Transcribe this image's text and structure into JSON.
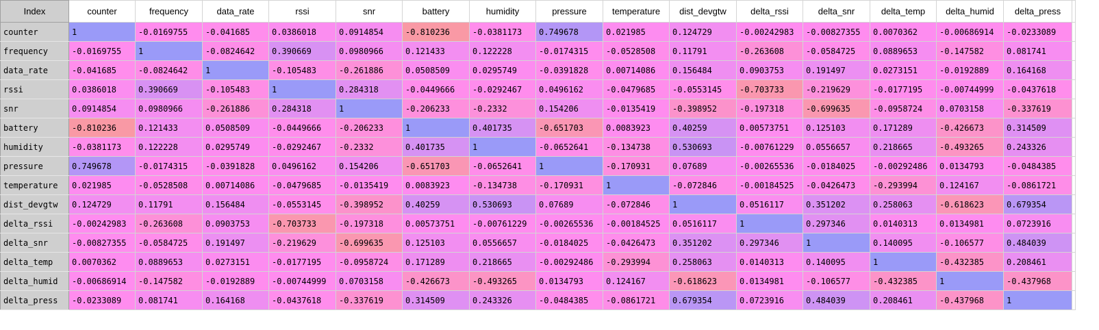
{
  "grid": {
    "index_header": "Index",
    "columns": [
      "counter",
      "frequency",
      "data_rate",
      "rssi",
      "snr",
      "battery",
      "humidity",
      "pressure",
      "temperature",
      "dist_devgtw",
      "delta_rssi",
      "delta_snr",
      "delta_temp",
      "delta_humid",
      "delta_press"
    ],
    "rows": [
      {
        "label": "counter",
        "cells": [
          "1",
          "-0.0169755",
          "-0.041685",
          "0.0386018",
          "0.0914854",
          "-0.810236",
          "-0.0381173",
          "0.749678",
          "0.021985",
          "0.124729",
          "-0.00242983",
          "-0.00827355",
          "0.0070362",
          "-0.00686914",
          "-0.0233089"
        ],
        "values": [
          1,
          -0.0169755,
          -0.041685,
          0.0386018,
          0.0914854,
          -0.810236,
          -0.0381173,
          0.749678,
          0.021985,
          0.124729,
          -0.00242983,
          -0.00827355,
          0.0070362,
          -0.00686914,
          -0.0233089
        ]
      },
      {
        "label": "frequency",
        "cells": [
          "-0.0169755",
          "1",
          "-0.0824642",
          "0.390669",
          "0.0980966",
          "0.121433",
          "0.122228",
          "-0.0174315",
          "-0.0528508",
          "0.11791",
          "-0.263608",
          "-0.0584725",
          "0.0889653",
          "-0.147582",
          "0.081741"
        ],
        "values": [
          -0.0169755,
          1,
          -0.0824642,
          0.390669,
          0.0980966,
          0.121433,
          0.122228,
          -0.0174315,
          -0.0528508,
          0.11791,
          -0.263608,
          -0.0584725,
          0.0889653,
          -0.147582,
          0.081741
        ]
      },
      {
        "label": "data_rate",
        "cells": [
          "-0.041685",
          "-0.0824642",
          "1",
          "-0.105483",
          "-0.261886",
          "0.0508509",
          "0.0295749",
          "-0.0391828",
          "0.00714086",
          "0.156484",
          "0.0903753",
          "0.191497",
          "0.0273151",
          "-0.0192889",
          "0.164168"
        ],
        "values": [
          -0.041685,
          -0.0824642,
          1,
          -0.105483,
          -0.261886,
          0.0508509,
          0.0295749,
          -0.0391828,
          0.00714086,
          0.156484,
          0.0903753,
          0.191497,
          0.0273151,
          -0.0192889,
          0.164168
        ]
      },
      {
        "label": "rssi",
        "cells": [
          "0.0386018",
          "0.390669",
          "-0.105483",
          "1",
          "0.284318",
          "-0.0449666",
          "-0.0292467",
          "0.0496162",
          "-0.0479685",
          "-0.0553145",
          "-0.703733",
          "-0.219629",
          "-0.0177195",
          "-0.00744999",
          "-0.0437618"
        ],
        "values": [
          0.0386018,
          0.390669,
          -0.105483,
          1,
          0.284318,
          -0.0449666,
          -0.0292467,
          0.0496162,
          -0.0479685,
          -0.0553145,
          -0.703733,
          -0.219629,
          -0.0177195,
          -0.00744999,
          -0.0437618
        ]
      },
      {
        "label": "snr",
        "cells": [
          "0.0914854",
          "0.0980966",
          "-0.261886",
          "0.284318",
          "1",
          "-0.206233",
          "-0.2332",
          "0.154206",
          "-0.0135419",
          "-0.398952",
          "-0.197318",
          "-0.699635",
          "-0.0958724",
          "0.0703158",
          "-0.337619"
        ],
        "values": [
          0.0914854,
          0.0980966,
          -0.261886,
          0.284318,
          1,
          -0.206233,
          -0.2332,
          0.154206,
          -0.0135419,
          -0.398952,
          -0.197318,
          -0.699635,
          -0.0958724,
          0.0703158,
          -0.337619
        ]
      },
      {
        "label": "battery",
        "cells": [
          "-0.810236",
          "0.121433",
          "0.0508509",
          "-0.0449666",
          "-0.206233",
          "1",
          "0.401735",
          "-0.651703",
          "0.0083923",
          "0.40259",
          "0.00573751",
          "0.125103",
          "0.171289",
          "-0.426673",
          "0.314509"
        ],
        "values": [
          -0.810236,
          0.121433,
          0.0508509,
          -0.0449666,
          -0.206233,
          1,
          0.401735,
          -0.651703,
          0.0083923,
          0.40259,
          0.00573751,
          0.125103,
          0.171289,
          -0.426673,
          0.314509
        ]
      },
      {
        "label": "humidity",
        "cells": [
          "-0.0381173",
          "0.122228",
          "0.0295749",
          "-0.0292467",
          "-0.2332",
          "0.401735",
          "1",
          "-0.0652641",
          "-0.134738",
          "0.530693",
          "-0.00761229",
          "0.0556657",
          "0.218665",
          "-0.493265",
          "0.243326"
        ],
        "values": [
          -0.0381173,
          0.122228,
          0.0295749,
          -0.0292467,
          -0.2332,
          0.401735,
          1,
          -0.0652641,
          -0.134738,
          0.530693,
          -0.00761229,
          0.0556657,
          0.218665,
          -0.493265,
          0.243326
        ]
      },
      {
        "label": "pressure",
        "cells": [
          "0.749678",
          "-0.0174315",
          "-0.0391828",
          "0.0496162",
          "0.154206",
          "-0.651703",
          "-0.0652641",
          "1",
          "-0.170931",
          "0.07689",
          "-0.00265536",
          "-0.0184025",
          "-0.00292486",
          "0.0134793",
          "-0.0484385"
        ],
        "values": [
          0.749678,
          -0.0174315,
          -0.0391828,
          0.0496162,
          0.154206,
          -0.651703,
          -0.0652641,
          1,
          -0.170931,
          0.07689,
          -0.00265536,
          -0.0184025,
          -0.00292486,
          0.0134793,
          -0.0484385
        ]
      },
      {
        "label": "temperature",
        "cells": [
          "0.021985",
          "-0.0528508",
          "0.00714086",
          "-0.0479685",
          "-0.0135419",
          "0.0083923",
          "-0.134738",
          "-0.170931",
          "1",
          "-0.072846",
          "-0.00184525",
          "-0.0426473",
          "-0.293994",
          "0.124167",
          "-0.0861721"
        ],
        "values": [
          0.021985,
          -0.0528508,
          0.00714086,
          -0.0479685,
          -0.0135419,
          0.0083923,
          -0.134738,
          -0.170931,
          1,
          -0.072846,
          -0.00184525,
          -0.0426473,
          -0.293994,
          0.124167,
          -0.0861721
        ]
      },
      {
        "label": "dist_devgtw",
        "cells": [
          "0.124729",
          "0.11791",
          "0.156484",
          "-0.0553145",
          "-0.398952",
          "0.40259",
          "0.530693",
          "0.07689",
          "-0.072846",
          "1",
          "0.0516117",
          "0.351202",
          "0.258063",
          "-0.618623",
          "0.679354"
        ],
        "values": [
          0.124729,
          0.11791,
          0.156484,
          -0.0553145,
          -0.398952,
          0.40259,
          0.530693,
          0.07689,
          -0.072846,
          1,
          0.0516117,
          0.351202,
          0.258063,
          -0.618623,
          0.679354
        ]
      },
      {
        "label": "delta_rssi",
        "cells": [
          "-0.00242983",
          "-0.263608",
          "0.0903753",
          "-0.703733",
          "-0.197318",
          "0.00573751",
          "-0.00761229",
          "-0.00265536",
          "-0.00184525",
          "0.0516117",
          "1",
          "0.297346",
          "0.0140313",
          "0.0134981",
          "0.0723916"
        ],
        "values": [
          -0.00242983,
          -0.263608,
          0.0903753,
          -0.703733,
          -0.197318,
          0.00573751,
          -0.00761229,
          -0.00265536,
          -0.00184525,
          0.0516117,
          1,
          0.297346,
          0.0140313,
          0.0134981,
          0.0723916
        ]
      },
      {
        "label": "delta_snr",
        "cells": [
          "-0.00827355",
          "-0.0584725",
          "0.191497",
          "-0.219629",
          "-0.699635",
          "0.125103",
          "0.0556657",
          "-0.0184025",
          "-0.0426473",
          "0.351202",
          "0.297346",
          "1",
          "0.140095",
          "-0.106577",
          "0.484039"
        ],
        "values": [
          -0.00827355,
          -0.0584725,
          0.191497,
          -0.219629,
          -0.699635,
          0.125103,
          0.0556657,
          -0.0184025,
          -0.0426473,
          0.351202,
          0.297346,
          1,
          0.140095,
          -0.106577,
          0.484039
        ]
      },
      {
        "label": "delta_temp",
        "cells": [
          "0.0070362",
          "0.0889653",
          "0.0273151",
          "-0.0177195",
          "-0.0958724",
          "0.171289",
          "0.218665",
          "-0.00292486",
          "-0.293994",
          "0.258063",
          "0.0140313",
          "0.140095",
          "1",
          "-0.432385",
          "0.208461"
        ],
        "values": [
          0.0070362,
          0.0889653,
          0.0273151,
          -0.0177195,
          -0.0958724,
          0.171289,
          0.218665,
          -0.00292486,
          -0.293994,
          0.258063,
          0.0140313,
          0.140095,
          1,
          -0.432385,
          0.208461
        ]
      },
      {
        "label": "delta_humid",
        "cells": [
          "-0.00686914",
          "-0.147582",
          "-0.0192889",
          "-0.00744999",
          "0.0703158",
          "-0.426673",
          "-0.493265",
          "0.0134793",
          "0.124167",
          "-0.618623",
          "0.0134981",
          "-0.106577",
          "-0.432385",
          "1",
          "-0.437968"
        ],
        "values": [
          -0.00686914,
          -0.147582,
          -0.0192889,
          -0.00744999,
          0.0703158,
          -0.426673,
          -0.493265,
          0.0134793,
          0.124167,
          -0.618623,
          0.0134981,
          -0.106577,
          -0.432385,
          1,
          -0.437968
        ]
      },
      {
        "label": "delta_press",
        "cells": [
          "-0.0233089",
          "0.081741",
          "0.164168",
          "-0.0437618",
          "-0.337619",
          "0.314509",
          "0.243326",
          "-0.0484385",
          "-0.0861721",
          "0.679354",
          "0.0723916",
          "0.484039",
          "0.208461",
          "-0.437968",
          "1"
        ],
        "values": [
          -0.0233089,
          0.081741,
          0.164168,
          -0.0437618,
          -0.337619,
          0.314509,
          0.243326,
          -0.0484385,
          -0.0861721,
          0.679354,
          0.0723916,
          0.484039,
          0.208461,
          -0.437968,
          1
        ]
      }
    ]
  },
  "colors": {
    "negative": "#f89c94",
    "zero": "#ff8cf0",
    "positive": "#9a9af8",
    "header_bg": "#cfcfcf",
    "grid_line": "#d4d4d4"
  }
}
